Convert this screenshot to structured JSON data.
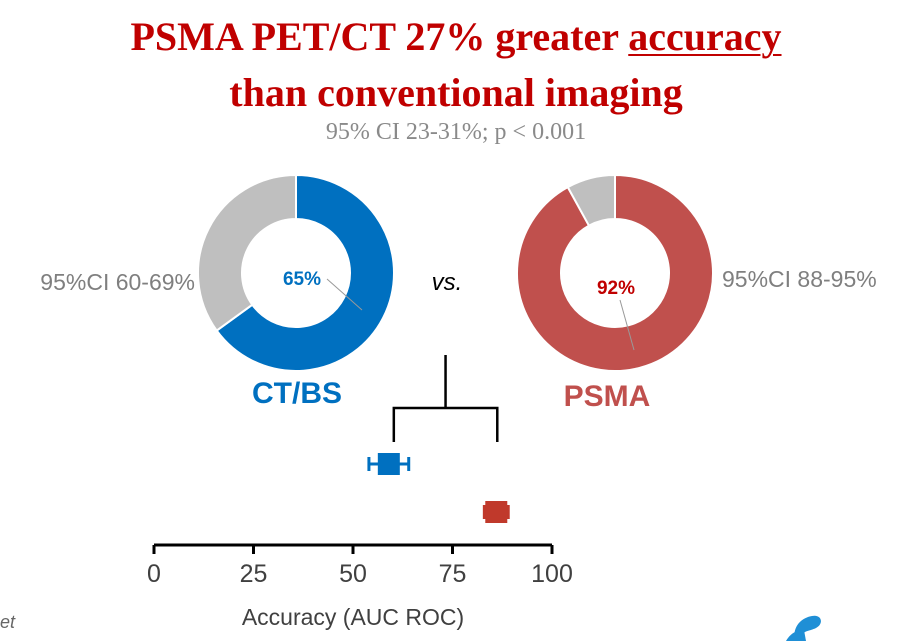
{
  "header": {
    "title_prefix": "PSMA PET/CT 27% greater ",
    "title_underlined": "accuracy",
    "title_line2": "than conventional imaging",
    "subtitle": "95% CI 23-31%; p < 0.001"
  },
  "vs_label": "vs.",
  "footer_fragment": "et",
  "colors": {
    "ctbs": "#0070C0",
    "psma": "#C0504D",
    "remainder": "#BFBFBF",
    "title": "#C00000",
    "axis": "#000000"
  },
  "chart_data": [
    {
      "type": "pie",
      "name": "CT/BS",
      "label": "CT/BS",
      "value_label": "65%",
      "ci_label": "95%CI 60-69%",
      "slices": [
        {
          "label": "accuracy",
          "value": 65
        },
        {
          "label": "remainder",
          "value": 35
        }
      ]
    },
    {
      "type": "pie",
      "name": "PSMA",
      "label": "PSMA",
      "value_label": "92%",
      "ci_label": "95%CI 88-95%",
      "slices": [
        {
          "label": "accuracy",
          "value": 92
        },
        {
          "label": "remainder",
          "value": 8
        }
      ]
    },
    {
      "type": "scatter",
      "xlabel": "Accuracy (AUC ROC)",
      "xlim": [
        0,
        100
      ],
      "xticks": [
        0,
        25,
        50,
        75,
        100
      ],
      "series": [
        {
          "name": "CT/BS",
          "value": 59,
          "ci": [
            54,
            64
          ]
        },
        {
          "name": "PSMA",
          "value": 86,
          "ci": [
            83,
            89
          ]
        }
      ]
    }
  ]
}
